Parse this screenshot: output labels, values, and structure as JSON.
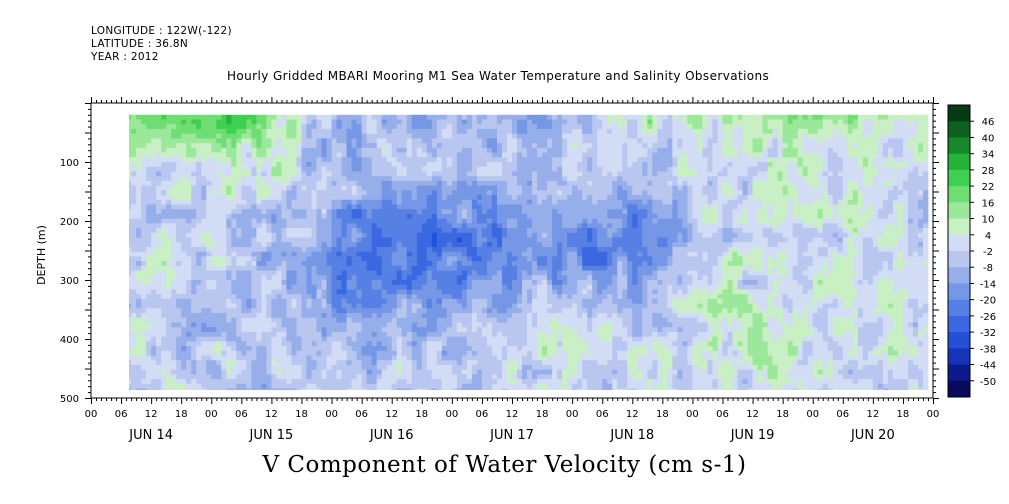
{
  "header": {
    "longitude": "LONGITUDE : 122W(-122)",
    "latitude": "LATITUDE : 36.8N",
    "year": "YEAR : 2012",
    "title": "Hourly Gridded MBARI Mooring M1 Sea Water Temperature and Salinity Observations"
  },
  "bottom_title": "V Component of Water Velocity (cm s-1)",
  "chart_data": {
    "type": "heatmap",
    "title": "Hourly Gridded MBARI Mooring M1 Sea Water Temperature and Salinity Observations",
    "xlabel": "",
    "ylabel": "DEPTH (m)",
    "units": "cm s-1",
    "x_range_hours": [
      0,
      168
    ],
    "x_data_start_hour": 7,
    "x_data_end_hour": 167,
    "x_hour_ticks": [
      "00",
      "06",
      "12",
      "18",
      "00",
      "06",
      "12",
      "18",
      "00",
      "06",
      "12",
      "18",
      "00",
      "06",
      "12",
      "18",
      "00",
      "06",
      "12",
      "18",
      "00",
      "06",
      "12",
      "18",
      "00",
      "06",
      "12",
      "18",
      "00"
    ],
    "x_day_labels": [
      "JUN 14",
      "JUN 15",
      "JUN 16",
      "JUN 17",
      "JUN 18",
      "JUN 19",
      "JUN 20"
    ],
    "ylim": [
      0,
      500
    ],
    "y_inverted": true,
    "y_ticks": [
      100,
      200,
      300,
      400,
      500
    ],
    "depth_range": [
      20,
      490
    ],
    "colorbar": {
      "levels": [
        -50,
        -44,
        -38,
        -32,
        -26,
        -20,
        -14,
        -8,
        -2,
        4,
        10,
        16,
        22,
        28,
        34,
        40,
        46
      ],
      "labels": [
        "46",
        "40",
        "34",
        "28",
        "22",
        "16",
        "10",
        "4",
        "-2",
        "-8",
        "-14",
        "-20",
        "-26",
        "-32",
        "-38",
        "-44",
        "-50"
      ],
      "colors": [
        "#0a0a5c",
        "#0d1a8c",
        "#1534b8",
        "#2250d6",
        "#3a68e0",
        "#5680e4",
        "#7696e6",
        "#96aeea",
        "#b8c6f0",
        "#d2dcf5",
        "#c8f0c4",
        "#9ce89a",
        "#6ede72",
        "#40d050",
        "#24b43a",
        "#178a2a",
        "#0c6020",
        "#063a14"
      ]
    },
    "field_description": "V velocity vs time and depth; strong positive (green) near surface Jun 14 and Jun 18-20; negative (blue) core 200-300 m Jun 15-17"
  }
}
